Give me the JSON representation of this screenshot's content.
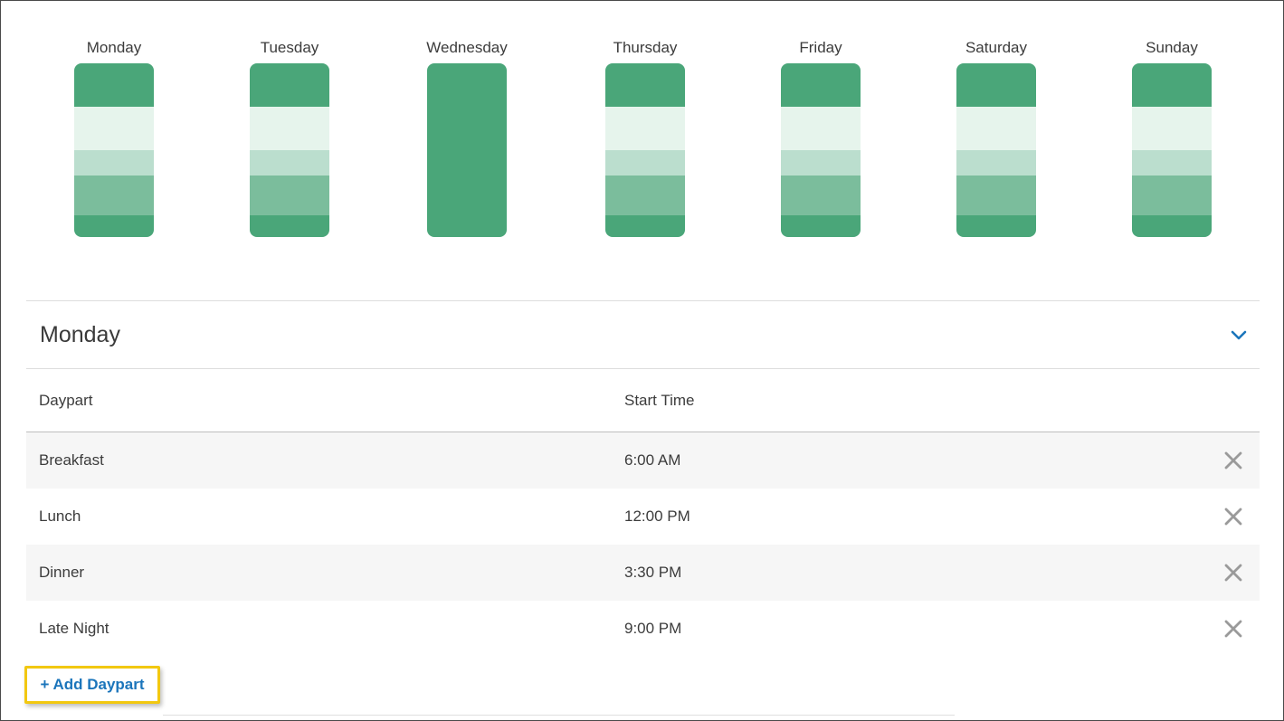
{
  "colors": {
    "dark": "#4aa679",
    "light": "#e6f4ec",
    "pale": "#bbdece",
    "medium": "#7bbd9c",
    "accent": "#1b75bb",
    "highlight": "#f2c811"
  },
  "week": {
    "days": [
      {
        "label": "Monday",
        "segments": [
          {
            "shade": "dark",
            "h": 48
          },
          {
            "shade": "light",
            "h": 48
          },
          {
            "shade": "pale",
            "h": 28
          },
          {
            "shade": "medium",
            "h": 44
          },
          {
            "shade": "dark",
            "h": 24
          }
        ]
      },
      {
        "label": "Tuesday",
        "segments": [
          {
            "shade": "dark",
            "h": 48
          },
          {
            "shade": "light",
            "h": 48
          },
          {
            "shade": "pale",
            "h": 28
          },
          {
            "shade": "medium",
            "h": 44
          },
          {
            "shade": "dark",
            "h": 24
          }
        ]
      },
      {
        "label": "Wednesday",
        "segments": [
          {
            "shade": "dark",
            "h": 192
          }
        ]
      },
      {
        "label": "Thursday",
        "segments": [
          {
            "shade": "dark",
            "h": 48
          },
          {
            "shade": "light",
            "h": 48
          },
          {
            "shade": "pale",
            "h": 28
          },
          {
            "shade": "medium",
            "h": 44
          },
          {
            "shade": "dark",
            "h": 24
          }
        ]
      },
      {
        "label": "Friday",
        "segments": [
          {
            "shade": "dark",
            "h": 48
          },
          {
            "shade": "light",
            "h": 48
          },
          {
            "shade": "pale",
            "h": 28
          },
          {
            "shade": "medium",
            "h": 44
          },
          {
            "shade": "dark",
            "h": 24
          }
        ]
      },
      {
        "label": "Saturday",
        "segments": [
          {
            "shade": "dark",
            "h": 48
          },
          {
            "shade": "light",
            "h": 48
          },
          {
            "shade": "pale",
            "h": 28
          },
          {
            "shade": "medium",
            "h": 44
          },
          {
            "shade": "dark",
            "h": 24
          }
        ]
      },
      {
        "label": "Sunday",
        "segments": [
          {
            "shade": "dark",
            "h": 48
          },
          {
            "shade": "light",
            "h": 48
          },
          {
            "shade": "pale",
            "h": 28
          },
          {
            "shade": "medium",
            "h": 44
          },
          {
            "shade": "dark",
            "h": 24
          }
        ]
      }
    ]
  },
  "panel": {
    "title": "Monday",
    "expand_icon": "chevron-down-icon",
    "columns": {
      "daypart": "Daypart",
      "start_time": "Start Time"
    },
    "rows": [
      {
        "daypart": "Breakfast",
        "start": "6:00 AM"
      },
      {
        "daypart": "Lunch",
        "start": "12:00 PM"
      },
      {
        "daypart": "Dinner",
        "start": "3:30 PM"
      },
      {
        "daypart": "Late Night",
        "start": "9:00 PM"
      }
    ],
    "remove_icon": "close-icon"
  },
  "add_button": {
    "label": "+ Add Daypart"
  }
}
